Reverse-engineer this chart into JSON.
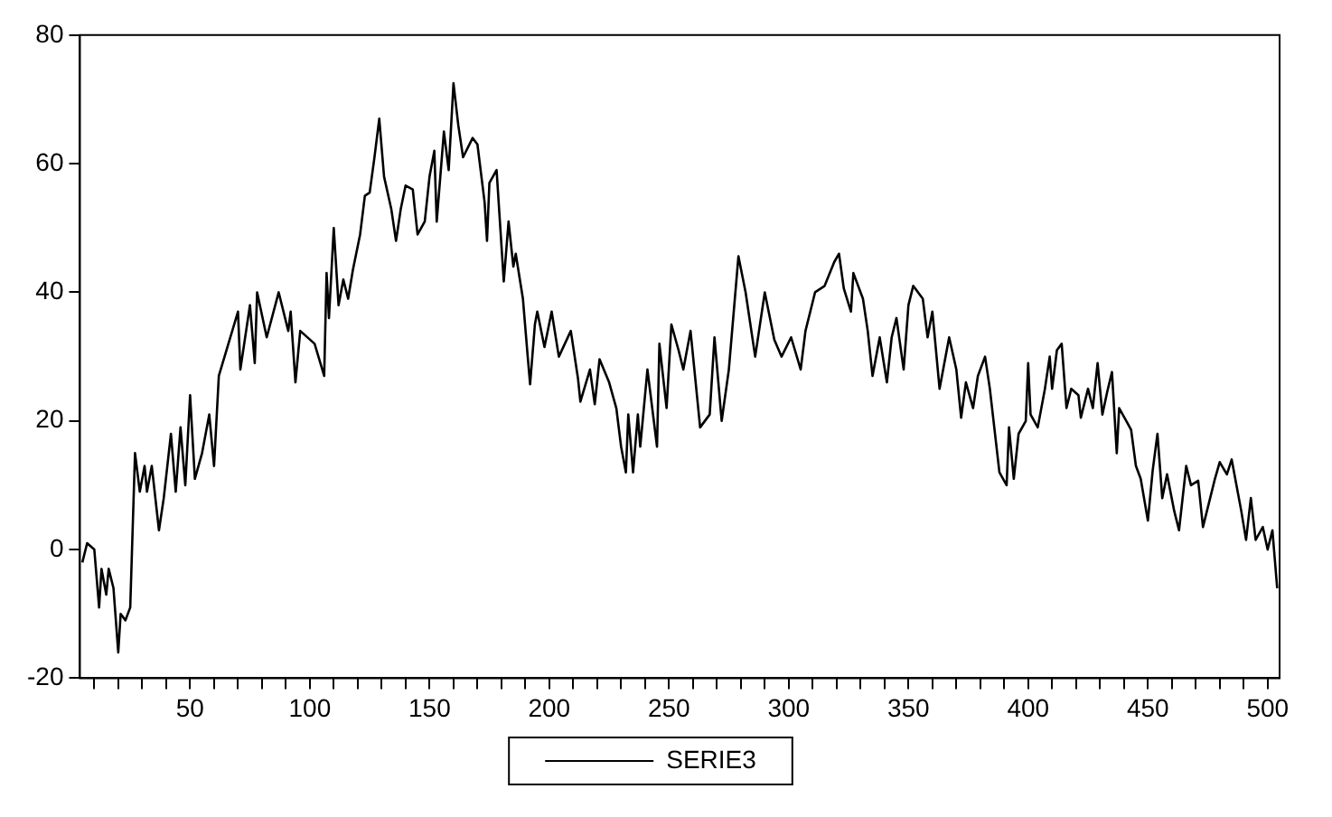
{
  "chart_data": {
    "type": "line",
    "legend": "bottom",
    "grid": false,
    "marker": "none",
    "line_style": "solid",
    "xlim": [
      4,
      505
    ],
    "ylim": [
      -20,
      80
    ],
    "yticks": [
      -20,
      0,
      20,
      40,
      60,
      80
    ],
    "xticks": [
      {
        "value": 10,
        "label": null
      },
      {
        "value": 20,
        "label": null
      },
      {
        "value": 30,
        "label": null
      },
      {
        "value": 40,
        "label": null
      },
      50,
      {
        "value": 60,
        "label": null
      },
      {
        "value": 70,
        "label": null
      },
      {
        "value": 80,
        "label": null
      },
      {
        "value": 90,
        "label": null
      },
      100,
      {
        "value": 110,
        "label": null
      },
      {
        "value": 120,
        "label": null
      },
      {
        "value": 130,
        "label": null
      },
      {
        "value": 140,
        "label": null
      },
      150,
      {
        "value": 160,
        "label": null
      },
      {
        "value": 170,
        "label": null
      },
      {
        "value": 180,
        "label": null
      },
      {
        "value": 190,
        "label": null
      },
      200,
      {
        "value": 210,
        "label": null
      },
      {
        "value": 220,
        "label": null
      },
      {
        "value": 230,
        "label": null
      },
      {
        "value": 240,
        "label": null
      },
      250,
      {
        "value": 260,
        "label": null
      },
      {
        "value": 270,
        "label": null
      },
      {
        "value": 280,
        "label": null
      },
      {
        "value": 290,
        "label": null
      },
      300,
      {
        "value": 310,
        "label": null
      },
      {
        "value": 320,
        "label": null
      },
      {
        "value": 330,
        "label": null
      },
      {
        "value": 340,
        "label": null
      },
      350,
      {
        "value": 360,
        "label": null
      },
      {
        "value": 370,
        "label": null
      },
      {
        "value": 380,
        "label": null
      },
      {
        "value": 390,
        "label": null
      },
      400,
      {
        "value": 410,
        "label": null
      },
      {
        "value": 420,
        "label": null
      },
      {
        "value": 430,
        "label": null
      },
      {
        "value": 440,
        "label": null
      },
      450,
      {
        "value": 460,
        "label": null
      },
      {
        "value": 470,
        "label": null
      },
      {
        "value": 480,
        "label": null
      },
      {
        "value": 490,
        "label": null
      },
      500
    ],
    "x": [
      5,
      7,
      10,
      12,
      13,
      15,
      16,
      18,
      20,
      21,
      23,
      25,
      27,
      29,
      31,
      32,
      34,
      37,
      39,
      42,
      44,
      46,
      48,
      50,
      52,
      55,
      58,
      60,
      62,
      66,
      70,
      71,
      75,
      77,
      78,
      82,
      87,
      91,
      92,
      94,
      96,
      102,
      106,
      107,
      108,
      110,
      112,
      114,
      116,
      118,
      121,
      123,
      125,
      127,
      129,
      131,
      134,
      136,
      138,
      140,
      143,
      145,
      148,
      150,
      152,
      153,
      156,
      158,
      160,
      162,
      164,
      168,
      170,
      173,
      174,
      175,
      178,
      181,
      183,
      185,
      186,
      189,
      191,
      192,
      194,
      195,
      198,
      201,
      204,
      209,
      212,
      213,
      217,
      219,
      221,
      225,
      228,
      230,
      232,
      233,
      235,
      237,
      238,
      241,
      245,
      246,
      249,
      251,
      254,
      256,
      259,
      263,
      267,
      269,
      272,
      275,
      279,
      282,
      286,
      290,
      294,
      297,
      301,
      305,
      307,
      311,
      315,
      319,
      321,
      323,
      326,
      327,
      331,
      333,
      335,
      338,
      341,
      343,
      345,
      348,
      350,
      352,
      356,
      358,
      360,
      363,
      367,
      370,
      372,
      374,
      377,
      379,
      382,
      384,
      388,
      391,
      392,
      394,
      396,
      399,
      400,
      401,
      404,
      407,
      409,
      410,
      412,
      414,
      416,
      418,
      421,
      422,
      425,
      427,
      429,
      431,
      433,
      435,
      437,
      438,
      441,
      443,
      445,
      447,
      450,
      452,
      454,
      456,
      458,
      461,
      463,
      466,
      468,
      471,
      473,
      476,
      478,
      480,
      483,
      485,
      487,
      489,
      491,
      493,
      495,
      498,
      500,
      502,
      504
    ],
    "series": [
      {
        "name": "SERIE3",
        "color": "#000000",
        "values": [
          -2,
          1,
          0,
          -9,
          -3,
          -7,
          -3,
          -6,
          -16,
          -10,
          -11,
          -9,
          15,
          9,
          13,
          9,
          13,
          3,
          8,
          18,
          9,
          19,
          10,
          24,
          11,
          15,
          21,
          13,
          27,
          32,
          37,
          28,
          38,
          29,
          40,
          33,
          40,
          34,
          37,
          26,
          34,
          32,
          27,
          43,
          36,
          50,
          38,
          42,
          39,
          43.5,
          49,
          55,
          55.5,
          61,
          67,
          58,
          53,
          48,
          53,
          56.6,
          56,
          49,
          51,
          58,
          62,
          51,
          65,
          59,
          72.5,
          66,
          61,
          64,
          63,
          54,
          48,
          57,
          59,
          41.7,
          51,
          44,
          46,
          39,
          30,
          25.7,
          35,
          37,
          31.5,
          37,
          30,
          34,
          26.6,
          23,
          28,
          22.6,
          29.6,
          26,
          22,
          16,
          12,
          21,
          12,
          21,
          16,
          28,
          16,
          32,
          22,
          35,
          31,
          28,
          34,
          19,
          21,
          33,
          20,
          28,
          45.6,
          40,
          30,
          40,
          32.6,
          30,
          33,
          28,
          34,
          40,
          41,
          44.7,
          46,
          40.6,
          37,
          43,
          39,
          34,
          27,
          33,
          26,
          33,
          36,
          28,
          38,
          41,
          39,
          33,
          37,
          25,
          33,
          28,
          20.5,
          26,
          22,
          27,
          30,
          25,
          12,
          10,
          19,
          11,
          18,
          20,
          29,
          21,
          19,
          25,
          30,
          25,
          31,
          32,
          22,
          25,
          24,
          20.5,
          25,
          22,
          29,
          21,
          24.5,
          27.6,
          15,
          22,
          20,
          18.6,
          13,
          11,
          4.5,
          12.3,
          18,
          8,
          11.7,
          6,
          3,
          13,
          10,
          10.7,
          3.5,
          8,
          11,
          13.6,
          11.7,
          14,
          10,
          6,
          1.5,
          8,
          1.5,
          3.5,
          0,
          3,
          -6
        ]
      }
    ]
  }
}
